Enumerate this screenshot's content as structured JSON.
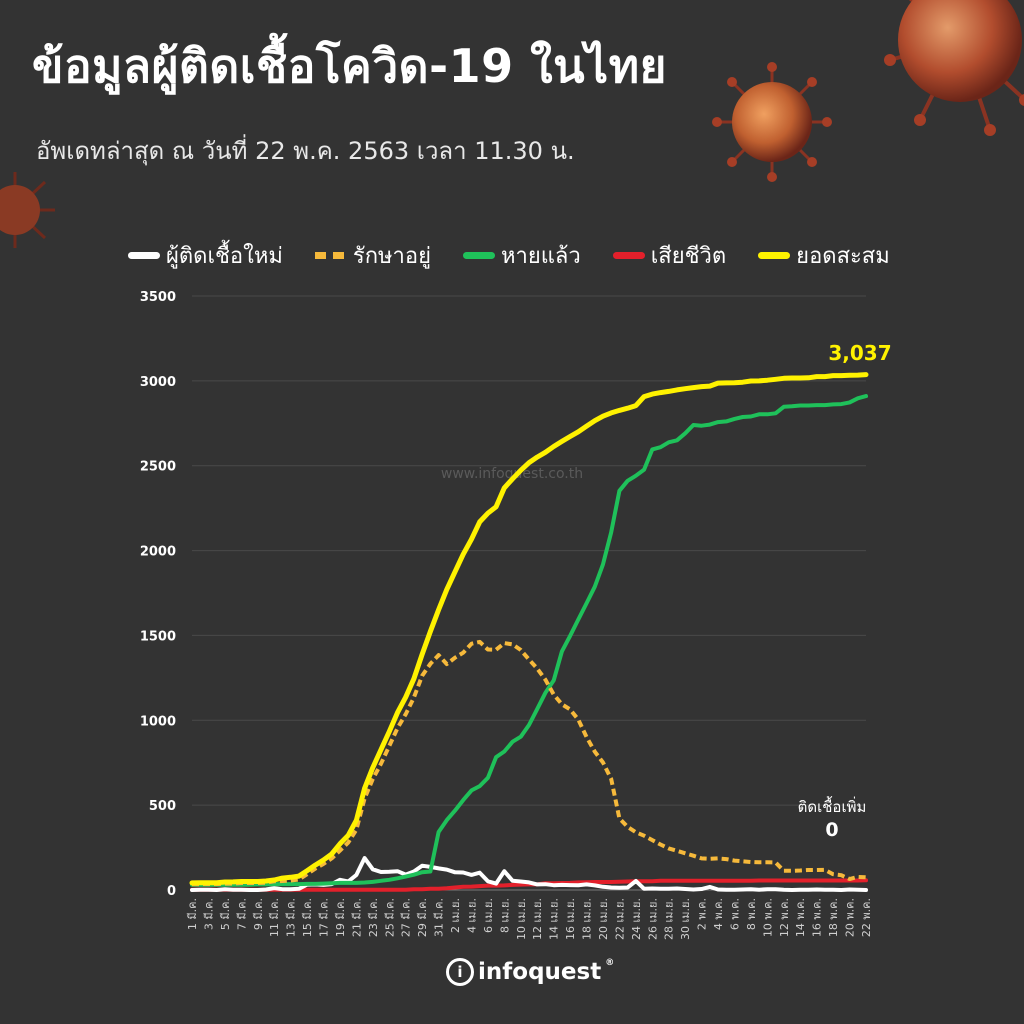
{
  "title": "ข้อมูลผู้ติดเชื้อโควิด-19 ในไทย",
  "subtitle": "อัพเดทล่าสุด ณ วันที่  22 พ.ค. 2563 เวลา 11.30 น.",
  "watermark": "www.infoquest.co.th",
  "logo_text": "infoquest",
  "colors": {
    "background": "#333333",
    "new_cases": "#ffffff",
    "in_treatment": "#f6b93b",
    "recovered": "#1fc15a",
    "deaths": "#e3202b",
    "cumulative": "#fff200"
  },
  "chart_data": {
    "type": "line",
    "ylim": [
      0,
      3500
    ],
    "yticks": [
      "0",
      "500",
      "1000",
      "1500",
      "2000",
      "2500",
      "3000",
      "3500"
    ],
    "x": [
      "1 มี.ค.",
      "2 มี.ค.",
      "3 มี.ค.",
      "4 มี.ค.",
      "5 มี.ค.",
      "6 มี.ค.",
      "7 มี.ค.",
      "8 มี.ค.",
      "9 มี.ค.",
      "10 มี.ค.",
      "11 มี.ค.",
      "12 มี.ค.",
      "13 มี.ค.",
      "14 มี.ค.",
      "15 มี.ค.",
      "16 มี.ค.",
      "17 มี.ค.",
      "18 มี.ค.",
      "19 มี.ค.",
      "20 มี.ค.",
      "21 มี.ค.",
      "22 มี.ค.",
      "23 มี.ค.",
      "24 มี.ค.",
      "25 มี.ค.",
      "26 มี.ค.",
      "27 มี.ค.",
      "28 มี.ค.",
      "29 มี.ค.",
      "30 มี.ค.",
      "31 มี.ค.",
      "1 เม.ย.",
      "2 เม.ย.",
      "3 เม.ย.",
      "4 เม.ย.",
      "5 เม.ย.",
      "6 เม.ย.",
      "7 เม.ย.",
      "8 เม.ย.",
      "9 เม.ย.",
      "10 เม.ย.",
      "11 เม.ย.",
      "12 เม.ย.",
      "13 เม.ย.",
      "14 เม.ย.",
      "15 เม.ย.",
      "16 เม.ย.",
      "17 เม.ย.",
      "18 เม.ย.",
      "19 เม.ย.",
      "20 เม.ย.",
      "21 เม.ย.",
      "22 เม.ย.",
      "23 เม.ย.",
      "24 เม.ย.",
      "25 เม.ย.",
      "26 เม.ย.",
      "27 เม.ย.",
      "28 เม.ย.",
      "29 เม.ย.",
      "30 เม.ย.",
      "1 พ.ค.",
      "2 พ.ค.",
      "3 พ.ค.",
      "4 พ.ค.",
      "5 พ.ค.",
      "6 พ.ค.",
      "7 พ.ค.",
      "8 พ.ค.",
      "9 พ.ค.",
      "10 พ.ค.",
      "11 พ.ค.",
      "12 พ.ค.",
      "13 พ.ค.",
      "14 พ.ค.",
      "15 พ.ค.",
      "16 พ.ค.",
      "17 พ.ค.",
      "18 พ.ค.",
      "19 พ.ค.",
      "20 พ.ค.",
      "21 พ.ค.",
      "22 พ.ค."
    ],
    "x_tick_labels": [
      "1 มี.ค.",
      "3 มี.ค.",
      "5 มี.ค.",
      "7 มี.ค.",
      "9 มี.ค.",
      "11 มี.ค.",
      "13 มี.ค.",
      "15 มี.ค.",
      "17 มี.ค.",
      "19 มี.ค.",
      "21 มี.ค.",
      "23 มี.ค.",
      "25 มี.ค.",
      "27 มี.ค.",
      "29 มี.ค.",
      "31 มี.ค.",
      "2 เม.ย.",
      "4 เม.ย.",
      "6 เม.ย.",
      "8 เม.ย.",
      "10 เม.ย.",
      "12 เม.ย.",
      "14 เม.ย.",
      "16 เม.ย.",
      "18 เม.ย.",
      "20 เม.ย.",
      "22 เม.ย.",
      "24 เม.ย.",
      "26 เม.ย.",
      "28 เม.ย.",
      "30 เม.ย.",
      "2 พ.ค.",
      "4 พ.ค.",
      "6 พ.ค.",
      "8 พ.ค.",
      "10 พ.ค.",
      "12 พ.ค.",
      "14 พ.ค.",
      "16 พ.ค.",
      "18 พ.ค.",
      "20 พ.ค.",
      "22 พ.ค."
    ],
    "series": [
      {
        "key": "new_cases",
        "name": "ผู้ติดเชื้อใหม่",
        "style": "solid",
        "values": [
          0,
          1,
          1,
          0,
          4,
          1,
          2,
          0,
          0,
          3,
          11,
          5,
          5,
          7,
          32,
          33,
          30,
          35,
          60,
          50,
          89,
          188,
          122,
          106,
          107,
          111,
          91,
          109,
          143,
          136,
          127,
          120,
          104,
          103,
          89,
          102,
          51,
          38,
          111,
          54,
          50,
          45,
          33,
          34,
          28,
          30,
          29,
          28,
          33,
          27,
          19,
          15,
          13,
          15,
          53,
          7,
          9,
          7,
          7,
          9,
          6,
          3,
          6,
          18,
          3,
          1,
          1,
          3,
          5,
          2,
          4,
          5,
          2,
          0,
          1,
          1,
          3,
          1,
          1,
          0,
          3,
          2,
          0
        ]
      },
      {
        "key": "in_treatment",
        "name": "รักษาอยู่",
        "style": "dashed",
        "values": [
          34,
          34,
          35,
          35,
          38,
          38,
          41,
          41,
          41,
          43,
          51,
          53,
          56,
          62,
          93,
          126,
          154,
          186,
          233,
          279,
          356,
          540,
          654,
          744,
          849,
          954,
          1036,
          1134,
          1262,
          1333,
          1384,
          1331,
          1369,
          1398,
          1451,
          1462,
          1417,
          1416,
          1455,
          1447,
          1414,
          1358,
          1305,
          1239,
          1152,
          1094,
          1064,
          1004,
          902,
          815,
          751,
          654,
          422,
          372,
          340,
          320,
          294,
          268,
          245,
          231,
          216,
          202,
          186,
          184,
          186,
          182,
          173,
          169,
          165,
          163,
          163,
          162,
          113,
          113,
          115,
          118,
          118,
          119,
          93,
          87,
          65,
          77,
          75
        ]
      },
      {
        "key": "recovered",
        "name": "หายแล้ว",
        "style": "solid",
        "values": [
          31,
          31,
          31,
          31,
          31,
          31,
          31,
          31,
          33,
          33,
          35,
          35,
          35,
          35,
          36,
          36,
          38,
          40,
          42,
          42,
          42,
          44,
          48,
          54,
          60,
          69,
          79,
          90,
          105,
          109,
          342,
          412,
          468,
          530,
          587,
          612,
          661,
          783,
          816,
          874,
          903,
          972,
          1066,
          1162,
          1235,
          1406,
          1497,
          1594,
          1689,
          1787,
          1919,
          2108,
          2352,
          2411,
          2441,
          2477,
          2596,
          2609,
          2638,
          2650,
          2691,
          2740,
          2736,
          2742,
          2757,
          2761,
          2776,
          2787,
          2790,
          2803,
          2803,
          2809,
          2847,
          2850,
          2855,
          2855,
          2857,
          2857,
          2861,
          2863,
          2873,
          2897,
          2910
        ]
      },
      {
        "key": "deaths",
        "name": "เสียชีวิต",
        "style": "solid",
        "values": [
          1,
          1,
          1,
          1,
          1,
          1,
          1,
          1,
          1,
          1,
          1,
          1,
          1,
          1,
          1,
          1,
          1,
          1,
          1,
          1,
          1,
          1,
          1,
          1,
          1,
          1,
          1,
          5,
          5,
          7,
          7,
          10,
          15,
          19,
          20,
          23,
          26,
          26,
          27,
          30,
          32,
          33,
          33,
          40,
          40,
          41,
          42,
          45,
          46,
          47,
          47,
          47,
          49,
          50,
          51,
          51,
          52,
          54,
          54,
          54,
          54,
          55,
          55,
          55,
          55,
          55,
          55,
          55,
          55,
          56,
          56,
          56,
          56,
          56,
          56,
          56,
          56,
          56,
          56,
          56,
          56,
          56,
          57
        ]
      },
      {
        "key": "cumulative",
        "name": "ยอดสะสม",
        "style": "solid",
        "values": [
          42,
          43,
          43,
          43,
          47,
          48,
          50,
          50,
          50,
          53,
          59,
          70,
          75,
          82,
          114,
          147,
          177,
          212,
          272,
          322,
          411,
          599,
          721,
          827,
          934,
          1045,
          1136,
          1245,
          1388,
          1524,
          1651,
          1771,
          1875,
          1978,
          2067,
          2169,
          2220,
          2258,
          2369,
          2423,
          2473,
          2518,
          2551,
          2579,
          2613,
          2643,
          2672,
          2700,
          2733,
          2765,
          2792,
          2811,
          2826,
          2839,
          2854,
          2907,
          2922,
          2931,
          2938,
          2947,
          2954,
          2960,
          2966,
          2969,
          2987,
          2988,
          2989,
          2992,
          2999,
          3000,
          3004,
          3009,
          3015,
          3017,
          3017,
          3018,
          3025,
          3025,
          3031,
          3031,
          3033,
          3034,
          3037
        ]
      }
    ],
    "annotations": [
      {
        "text": "3,037",
        "series": "cumulative",
        "color": "#fff200"
      },
      {
        "text": "ติดเชื้อเพิ่ม",
        "series": "new_cases",
        "color": "#ffffff"
      },
      {
        "text": "0",
        "series": "new_cases",
        "color": "#ffffff"
      }
    ],
    "grid": true,
    "legend": "top"
  }
}
